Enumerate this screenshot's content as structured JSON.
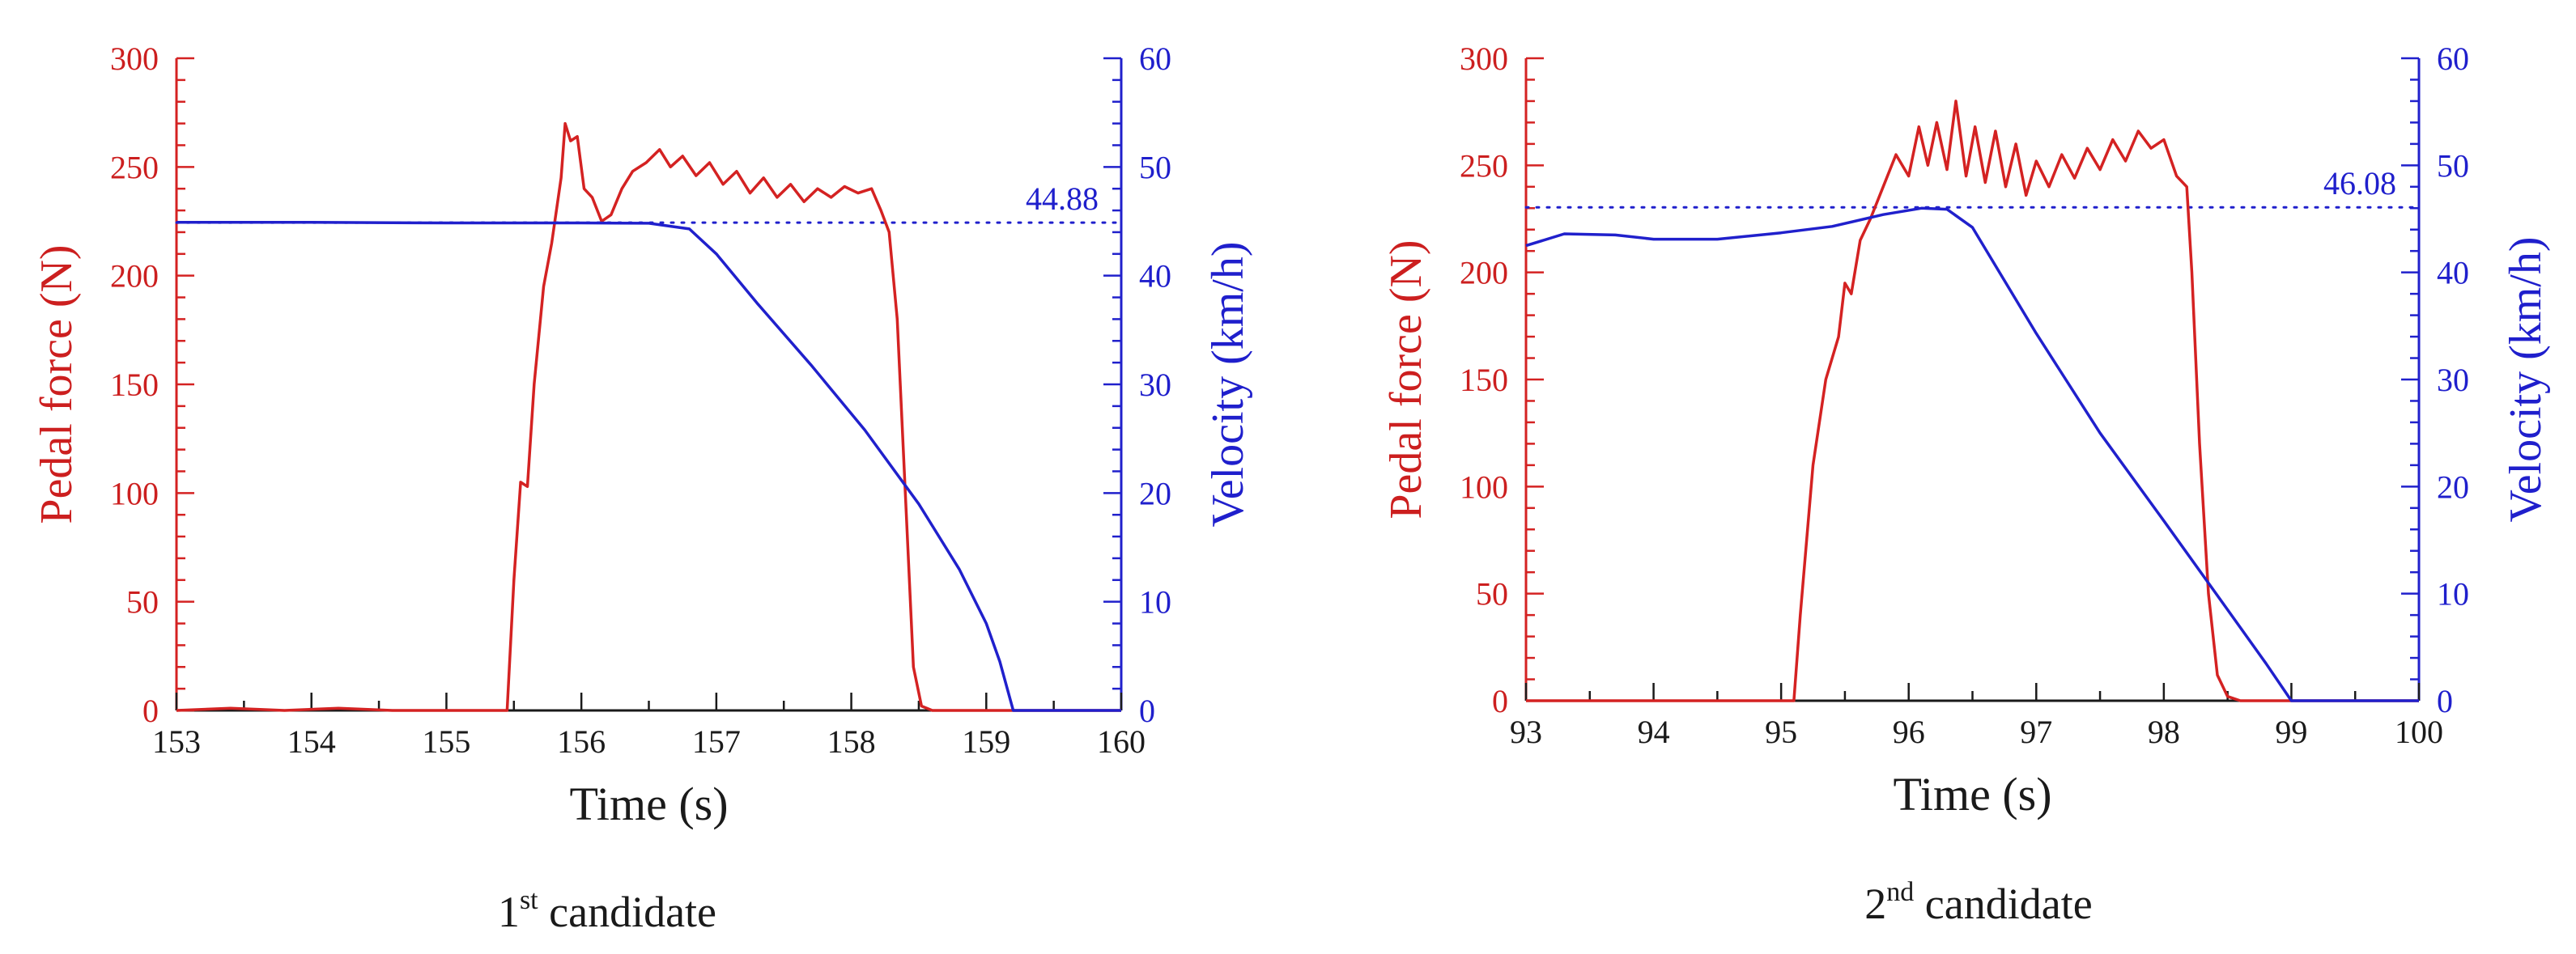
{
  "colors": {
    "force": "#d42222",
    "velocity": "#2020cc",
    "axis_x": "#1a1a1a"
  },
  "chart_data": [
    {
      "type": "line",
      "caption": {
        "prefix": "1",
        "sup": "st",
        "text": " candidate"
      },
      "xlabel": "Time (s)",
      "ylabel_left": "Pedal force (N)",
      "ylabel_right": "Velocity (km/h)",
      "xlim": [
        153,
        160
      ],
      "ylim_left": [
        0,
        300
      ],
      "ylim_right": [
        0,
        60
      ],
      "xticks": [
        153,
        154,
        155,
        156,
        157,
        158,
        159,
        160
      ],
      "yticks_left": [
        0,
        50,
        100,
        150,
        200,
        250,
        300
      ],
      "yticks_right": [
        0,
        10,
        20,
        30,
        40,
        50,
        60
      ],
      "reference_line": {
        "axis": "right",
        "value": 44.88,
        "label": "44.88",
        "style": "dotted"
      },
      "series": [
        {
          "name": "Pedal force",
          "axis": "left",
          "x": [
            153,
            153.4,
            153.8,
            154.2,
            154.6,
            155.0,
            155.45,
            155.5,
            155.55,
            155.6,
            155.65,
            155.72,
            155.78,
            155.85,
            155.88,
            155.92,
            155.97,
            156.02,
            156.08,
            156.15,
            156.22,
            156.3,
            156.38,
            156.48,
            156.58,
            156.66,
            156.75,
            156.85,
            156.95,
            157.05,
            157.15,
            157.25,
            157.35,
            157.45,
            157.55,
            157.65,
            157.75,
            157.85,
            157.95,
            158.05,
            158.15,
            158.22,
            158.28,
            158.34,
            158.4,
            158.46,
            158.52,
            158.6,
            158.8,
            159.2,
            160
          ],
          "y": [
            0,
            1,
            0,
            1,
            0,
            0,
            0,
            60,
            105,
            103,
            150,
            195,
            215,
            245,
            270,
            262,
            264,
            240,
            236,
            225,
            228,
            240,
            248,
            252,
            258,
            250,
            255,
            246,
            252,
            242,
            248,
            238,
            245,
            236,
            242,
            234,
            240,
            236,
            241,
            238,
            240,
            230,
            220,
            180,
            100,
            20,
            2,
            0,
            0,
            0,
            0
          ]
        },
        {
          "name": "Velocity",
          "axis": "right",
          "x": [
            153,
            154,
            155,
            156,
            156.5,
            156.8,
            157.0,
            157.3,
            157.7,
            158.1,
            158.5,
            158.8,
            159.0,
            159.1,
            159.2,
            160
          ],
          "y": [
            44.9,
            44.9,
            44.85,
            44.85,
            44.82,
            44.3,
            42.0,
            37.5,
            31.8,
            25.8,
            19.0,
            13.0,
            8.0,
            4.5,
            0,
            0
          ]
        }
      ]
    },
    {
      "type": "line",
      "caption": {
        "prefix": "2",
        "sup": "nd",
        "text": " candidate"
      },
      "xlabel": "Time (s)",
      "ylabel_left": "Pedal force (N)",
      "ylabel_right": "Velocity (km/h)",
      "xlim": [
        93,
        100
      ],
      "ylim_left": [
        0,
        300
      ],
      "ylim_right": [
        0,
        60
      ],
      "xticks": [
        93,
        94,
        95,
        96,
        97,
        98,
        99,
        100
      ],
      "yticks_left": [
        0,
        50,
        100,
        150,
        200,
        250,
        300
      ],
      "yticks_right": [
        0,
        10,
        20,
        30,
        40,
        50,
        60
      ],
      "reference_line": {
        "axis": "right",
        "value": 46.08,
        "label": "46.08",
        "style": "dotted"
      },
      "series": [
        {
          "name": "Pedal force",
          "axis": "left",
          "x": [
            93,
            94,
            95,
            95.1,
            95.15,
            95.25,
            95.35,
            95.45,
            95.5,
            95.55,
            95.62,
            95.7,
            95.8,
            95.9,
            96.0,
            96.08,
            96.15,
            96.22,
            96.3,
            96.37,
            96.45,
            96.52,
            96.6,
            96.68,
            96.76,
            96.84,
            96.92,
            97.0,
            97.1,
            97.2,
            97.3,
            97.4,
            97.5,
            97.6,
            97.7,
            97.8,
            97.9,
            98.0,
            98.1,
            98.18,
            98.22,
            98.28,
            98.35,
            98.42,
            98.5,
            98.6,
            99,
            100
          ],
          "y": [
            0,
            0,
            0,
            0,
            40,
            110,
            150,
            170,
            195,
            190,
            215,
            225,
            240,
            255,
            245,
            268,
            250,
            270,
            248,
            280,
            245,
            268,
            242,
            266,
            240,
            260,
            236,
            252,
            240,
            255,
            244,
            258,
            248,
            262,
            252,
            266,
            258,
            262,
            245,
            240,
            200,
            120,
            50,
            12,
            2,
            0,
            0,
            0
          ]
        },
        {
          "name": "Velocity",
          "axis": "right",
          "x": [
            93,
            93.3,
            93.7,
            94.0,
            94.5,
            95.0,
            95.4,
            95.8,
            96.1,
            96.3,
            96.5,
            97.0,
            97.5,
            98.0,
            98.5,
            98.8,
            99.0,
            100
          ],
          "y": [
            42.5,
            43.6,
            43.5,
            43.1,
            43.1,
            43.7,
            44.3,
            45.4,
            46.0,
            45.9,
            44.2,
            34.3,
            25.0,
            16.8,
            8.5,
            3.5,
            0,
            0
          ]
        }
      ]
    }
  ]
}
